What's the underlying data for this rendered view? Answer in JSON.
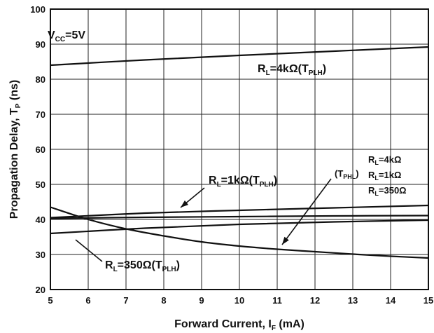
{
  "chart_data": {
    "type": "line",
    "title": "",
    "xlabel": {
      "text": "Forward Current, I",
      "sub": "F",
      "unit": " (mA)"
    },
    "ylabel": {
      "text": "Propagation Delay, T",
      "sub": "P",
      "unit": " (ns)"
    },
    "xlim": [
      5,
      15
    ],
    "ylim": [
      20,
      100
    ],
    "x_ticks": [
      "5",
      "6",
      "7",
      "8",
      "9",
      "10",
      "11",
      "12",
      "13",
      "14",
      "15"
    ],
    "y_ticks": [
      "20",
      "30",
      "40",
      "50",
      "60",
      "70",
      "80",
      "90",
      "100"
    ],
    "grid": true,
    "series": [
      {
        "name": "RL=4kΩ(TPLH)",
        "x": [
          5,
          7.5,
          10,
          12.5,
          15
        ],
        "y": [
          84.0,
          85.5,
          86.8,
          88.0,
          89.2
        ]
      },
      {
        "name": "RL=1kΩ(TPLH)",
        "x": [
          5,
          7.5,
          10,
          12.5,
          15
        ],
        "y": [
          40.5,
          41.8,
          42.6,
          43.3,
          44.0
        ]
      },
      {
        "name": "RL=350Ω(TPLH)",
        "x": [
          5,
          6,
          7,
          8,
          9,
          10,
          11,
          12,
          13,
          14,
          15
        ],
        "y": [
          43.5,
          40.0,
          37.3,
          35.3,
          33.6,
          32.4,
          31.5,
          30.8,
          30.1,
          29.5,
          29.0
        ]
      },
      {
        "name": "TPHL RL=4kΩ",
        "x": [
          5,
          7.5,
          10,
          12.5,
          15
        ],
        "y": [
          40.3,
          40.6,
          40.8,
          41.0,
          41.1
        ]
      },
      {
        "name": "TPHL RL=1kΩ",
        "x": [
          5,
          7.5,
          10,
          12.5,
          15
        ],
        "y": [
          36.0,
          37.5,
          38.6,
          39.3,
          39.8
        ]
      }
    ],
    "annotations": {
      "vcc": {
        "main": "V",
        "sub": "CC",
        "rest": "=5V"
      },
      "rl4k_plh": {
        "main": "R",
        "sub": "L",
        "mid": "=4kΩ(T",
        "sub2": "PLH",
        "end": ")"
      },
      "rl1k_plh": {
        "main": "R",
        "sub": "L",
        "mid": "=1kΩ(T",
        "sub2": "PLH",
        "end": ")"
      },
      "rl350_plh": {
        "main": "R",
        "sub": "L",
        "mid": "=350Ω(T",
        "sub2": "PLH",
        "end": ")"
      },
      "tphl": {
        "main": "(T",
        "sub": "PHL",
        "end": ")"
      },
      "tphl_rl4k": {
        "main": "R",
        "sub": "L",
        "rest": "=4kΩ"
      },
      "tphl_rl1k": {
        "main": "R",
        "sub": "L",
        "rest": "=1kΩ"
      },
      "tphl_rl350": {
        "main": "R",
        "sub": "L",
        "rest": "=350Ω"
      }
    }
  }
}
